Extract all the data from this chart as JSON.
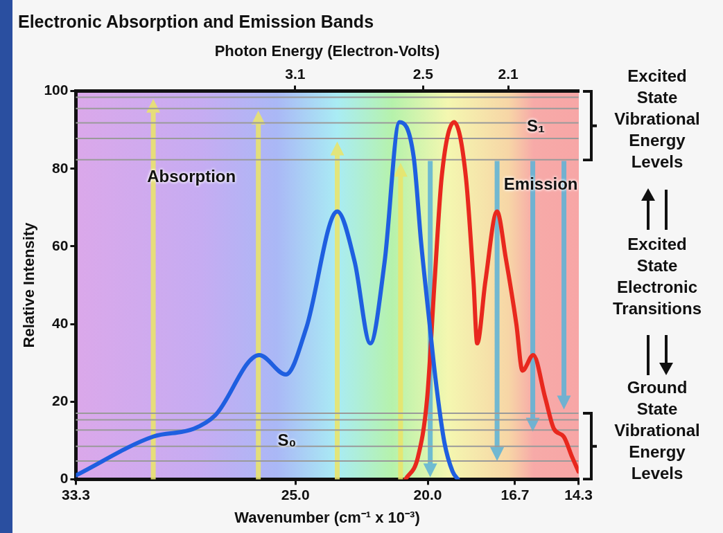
{
  "chart_data": {
    "type": "line",
    "title": "Electronic Absorption and Emission Bands",
    "xlabel": "Wavenumber (cm⁻¹ x 10⁻³)",
    "ylabel": "Relative Intensity",
    "x2label": "Photon Energy (Electron-Volts)",
    "xlim": [
      33.3,
      14.3
    ],
    "xticks": [
      33.3,
      {
        "value": 25,
        "label": "25.0"
      },
      {
        "value": 20,
        "label": "20.0"
      },
      16.7,
      14.3
    ],
    "x2lim": [
      4.13,
      1.77
    ],
    "x2ticks": [
      3.1,
      2.5,
      2.1
    ],
    "ylim": [
      0,
      100
    ],
    "yticks": [
      0,
      20,
      40,
      60,
      80,
      100
    ],
    "series": [
      {
        "color": "#1f5fe0",
        "x": [
          33.3,
          30.38,
          28.85,
          28.03,
          26.37,
          25.36,
          24.59,
          23.42,
          22.76,
          22.17,
          21.63,
          21.07,
          20.53,
          20.25,
          19.96,
          19.69,
          19.37,
          19.06,
          18.86
        ],
        "values": [
          1,
          11,
          13,
          16.5,
          32,
          27,
          39,
          69,
          56,
          35,
          56,
          92,
          83,
          61,
          42,
          25,
          9.5,
          2,
          0
        ]
      },
      {
        "color": "#e8281e",
        "x": [
          20.84,
          20.37,
          20.02,
          19.74,
          19.47,
          19.0,
          18.56,
          18.27,
          18.13,
          17.82,
          17.38,
          17.05,
          16.65,
          16.42,
          16.01,
          15.56,
          15.23,
          14.86,
          14.54,
          14.3
        ],
        "values": [
          0,
          5.7,
          21,
          51,
          78,
          92,
          78,
          51,
          35,
          51,
          69,
          57,
          40,
          28,
          32,
          21,
          13,
          11,
          5.7,
          2
        ]
      }
    ],
    "ref_lines": [
      {
        "axis": "y",
        "value": 98.4,
        "color": "#9a9a9a"
      },
      {
        "axis": "y",
        "value": 95.5,
        "color": "#9a9a9a"
      },
      {
        "axis": "y",
        "value": 91.8,
        "color": "#9a9a9a"
      },
      {
        "axis": "y",
        "value": 87.8,
        "color": "#9a9a9a"
      },
      {
        "axis": "y",
        "value": 82.3,
        "color": "#9a9a9a"
      },
      {
        "axis": "y",
        "value": 17,
        "color": "#9a9a9a"
      },
      {
        "axis": "y",
        "value": 15.3,
        "color": "#9a9a9a"
      },
      {
        "axis": "y",
        "value": 12.7,
        "color": "#9a9a9a"
      },
      {
        "axis": "y",
        "value": 8.5,
        "color": "#9a9a9a"
      },
      {
        "axis": "y",
        "value": 4.7,
        "color": "#9a9a9a"
      }
    ],
    "annotations": [
      "Absorption",
      "Emission",
      "S₁",
      "S₀",
      "Excited State Vibrational Energy Levels",
      "Excited State Electronic Transitions",
      "Ground State Vibrational Energy Levels"
    ]
  }
}
